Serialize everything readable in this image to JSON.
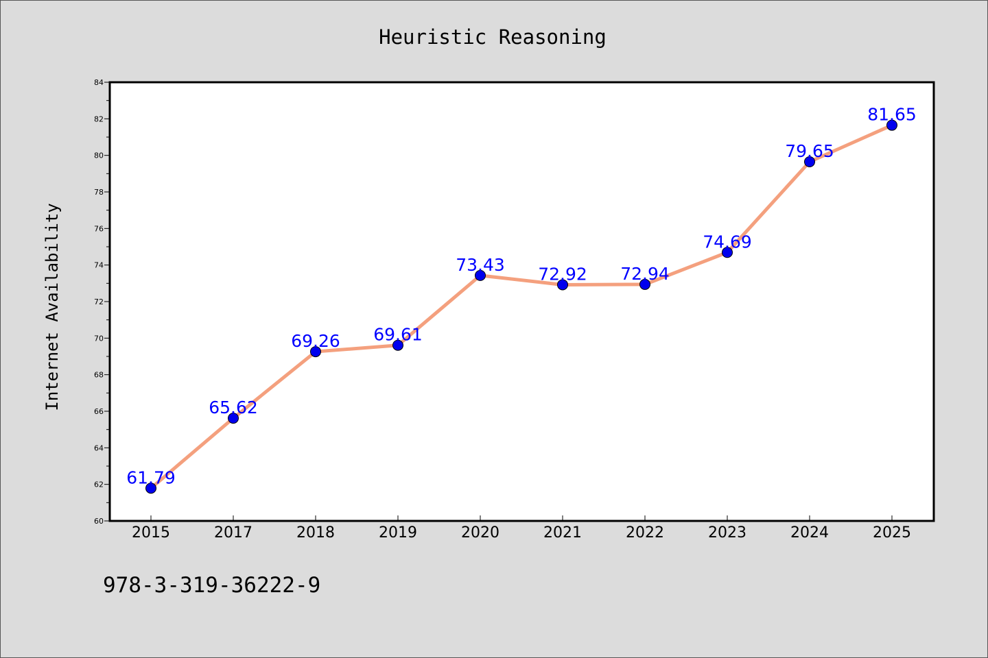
{
  "footer_code": "978-3-319-36222-9",
  "chart_data": {
    "type": "line",
    "title": "Heuristic Reasoning",
    "xlabel": "",
    "ylabel": "Internet Availability",
    "categories": [
      "2015",
      "2017",
      "2018",
      "2019",
      "2020",
      "2021",
      "2022",
      "2023",
      "2024",
      "2025"
    ],
    "series": [
      {
        "values": [
          61.79,
          65.62,
          69.26,
          69.61,
          73.43,
          72.92,
          72.94,
          74.69,
          79.65,
          81.65
        ],
        "labels": [
          "61.79",
          "65.62",
          "69.26",
          "69.61",
          "73.43",
          "72.92",
          "72.94",
          "74.69",
          "79.65",
          "81.65"
        ]
      }
    ],
    "ylim": [
      60,
      84
    ],
    "yticks": [
      "60",
      "62",
      "64",
      "66",
      "68",
      "70",
      "72",
      "74",
      "76",
      "78",
      "80",
      "82",
      "84"
    ],
    "grid": false,
    "colors": {
      "line": "#f4a07e",
      "marker": "#0000ee",
      "label": "#0000ff"
    }
  }
}
